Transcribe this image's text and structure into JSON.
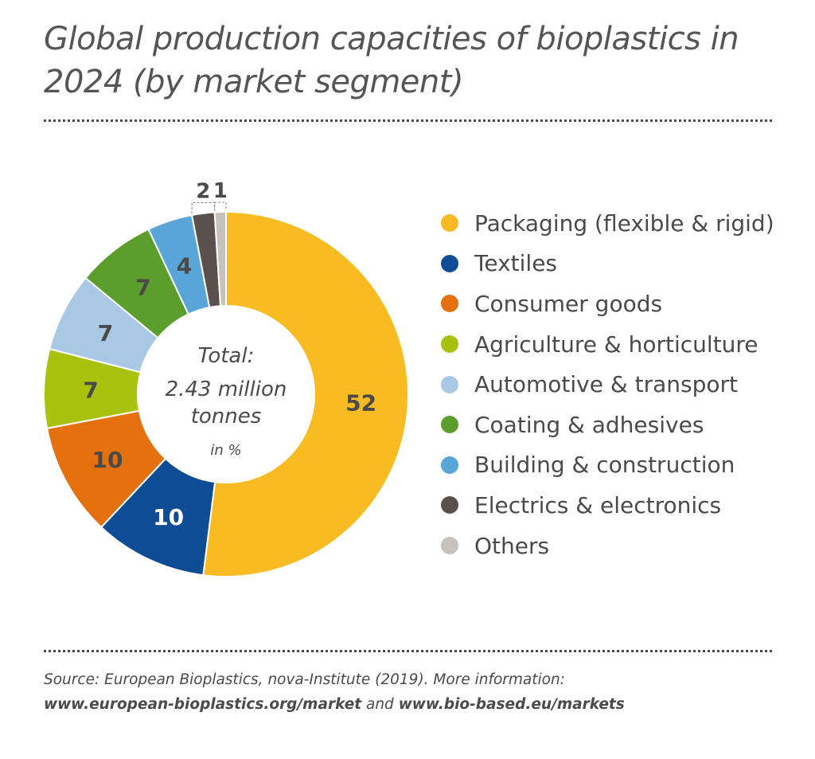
{
  "title": "Global production capacities of bioplastics in 2024 (by market segment)",
  "chart_data": {
    "type": "pie",
    "center_text": {
      "line1": "Total:",
      "line2": "2.43 million",
      "line3": "tonnes",
      "unit": "in %"
    },
    "categories": [
      "Packaging (flexible & rigid)",
      "Textiles",
      "Consumer goods",
      "Agriculture & horticulture",
      "Automotive & transport",
      "Coating & adhesives",
      "Building & construction",
      "Electrics & electronics",
      "Others"
    ],
    "values": [
      52,
      10,
      10,
      7,
      7,
      7,
      4,
      2,
      1
    ],
    "colors": [
      "#f8bb22",
      "#0e4d96",
      "#e4700e",
      "#a9c20f",
      "#a9c8e3",
      "#5c9e2b",
      "#5aa5d8",
      "#5a514c",
      "#c8c2bc"
    ],
    "label_colors": [
      "#4a4a4a",
      "#ffffff",
      "#4a4a4a",
      "#4a4a4a",
      "#4a4a4a",
      "#4a4a4a",
      "#4a4a4a",
      "#4a4a4a",
      "#4a4a4a"
    ],
    "legend_position": "right"
  },
  "source": {
    "line1": "Source: European Bioplastics, nova-Institute (2019). More information:",
    "link1": "www.european-bioplastics.org/market",
    "joiner": "and",
    "link2": "www.bio-based.eu/markets"
  }
}
